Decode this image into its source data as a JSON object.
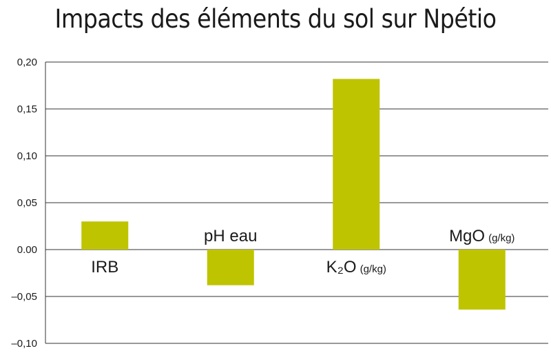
{
  "chart_data": {
    "type": "bar",
    "title": "Impacts des éléments du sol sur Npétio",
    "xlabel": "",
    "ylabel": "",
    "categories": [
      {
        "label": "IRB",
        "unit": ""
      },
      {
        "label": "pH eau",
        "unit": ""
      },
      {
        "label": "K₂O",
        "unit": "(g/kg)"
      },
      {
        "label": "MgO",
        "unit": "(g/kg)"
      }
    ],
    "values": [
      0.03,
      -0.038,
      0.182,
      -0.064
    ],
    "ylim": [
      -0.1,
      0.2
    ],
    "yticks": [
      "0,20",
      "0,15",
      "0,10",
      "0,05",
      "0.00",
      "–0,05",
      "–0,10"
    ],
    "ytick_values": [
      0.2,
      0.15,
      0.1,
      0.05,
      0.0,
      -0.05,
      -0.1
    ],
    "grid": true,
    "bar_color": "#bfc400",
    "grid_color": "#333333"
  }
}
